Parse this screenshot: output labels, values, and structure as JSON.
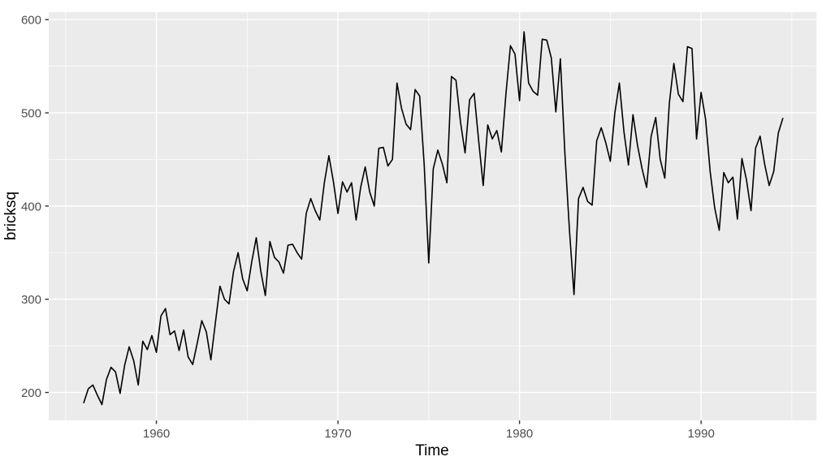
{
  "chart_data": {
    "type": "line",
    "title": "",
    "xlabel": "Time",
    "ylabel": "bricksq",
    "series": [
      {
        "name": "bricksq",
        "start_year": 1956,
        "start_quarter": 1,
        "frequency": 4,
        "end_label": "1994 Q3",
        "values": [
          189,
          204,
          208,
          197,
          187,
          214,
          227,
          222,
          199,
          229,
          249,
          234,
          208,
          255,
          246,
          261,
          243,
          282,
          290,
          262,
          266,
          245,
          267,
          238,
          230,
          253,
          277,
          265,
          235,
          275,
          314,
          300,
          295,
          330,
          350,
          322,
          309,
          340,
          366,
          330,
          304,
          362,
          345,
          340,
          328,
          358,
          359,
          350,
          343,
          392,
          408,
          395,
          385,
          425,
          454,
          426,
          392,
          426,
          415,
          425,
          385,
          420,
          442,
          415,
          400,
          462,
          463,
          443,
          450,
          532,
          505,
          488,
          482,
          525,
          518,
          444,
          339,
          440,
          460,
          445,
          425,
          539,
          535,
          490,
          457,
          514,
          521,
          470,
          422,
          487,
          472,
          481,
          458,
          520,
          572,
          563,
          513,
          587,
          532,
          523,
          519,
          579,
          578,
          559,
          501,
          558,
          456,
          374,
          305,
          408,
          420,
          405,
          401,
          470,
          484,
          468,
          448,
          500,
          532,
          480,
          444,
          498,
          465,
          440,
          420,
          475,
          495,
          450,
          430,
          510,
          553,
          520,
          512,
          571,
          569,
          472,
          522,
          493,
          437,
          398,
          374,
          436,
          425,
          431,
          386,
          451,
          428,
          395,
          462,
          475,
          445,
          422,
          437,
          478,
          494
        ]
      }
    ],
    "x_ticks": [
      1960,
      1970,
      1980,
      1990
    ],
    "x_minor_ticks": [
      1955,
      1965,
      1975,
      1985,
      1995
    ],
    "y_ticks": [
      200,
      300,
      400,
      500,
      600
    ],
    "y_minor_ticks": [
      250,
      350,
      450,
      550
    ],
    "x_domain": [
      1954.07,
      1996.36
    ],
    "y_domain": [
      170,
      608
    ],
    "grid": true,
    "legend": "none",
    "colors": {
      "background": "#FFFFFF",
      "panel_bg": "#EBEBEB",
      "grid_major": "#FFFFFF",
      "grid_minor": "#FFFFFF",
      "line": "#000000",
      "axis_text": "#4D4D4D",
      "axis_title": "#000000",
      "tick_mark": "#333333"
    }
  }
}
